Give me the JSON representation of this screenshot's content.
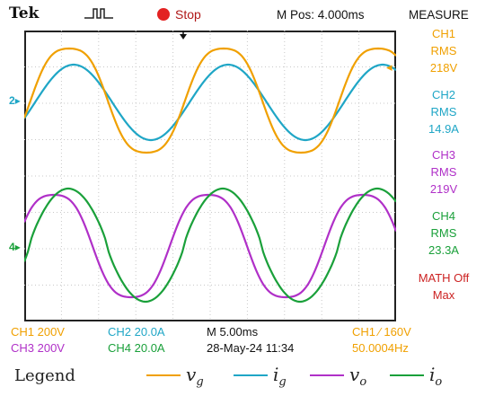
{
  "header": {
    "brand": "Tek",
    "trigger_icon": "pulse-icon",
    "run_state": "Stop",
    "run_state_icon": "stop-icon",
    "m_pos": "M Pos: 4.000ms",
    "measure_title": "MEASURE"
  },
  "markers": {
    "ch2_level": "2",
    "ch4_level": "4"
  },
  "measurements": [
    {
      "channel": "CH1",
      "type": "RMS",
      "value": "218V",
      "color": "#f0a000"
    },
    {
      "channel": "CH2",
      "type": "RMS",
      "value": "14.9A",
      "color": "#1fa6c6"
    },
    {
      "channel": "CH3",
      "type": "RMS",
      "value": "219V",
      "color": "#b030c8"
    },
    {
      "channel": "CH4",
      "type": "RMS",
      "value": "23.3A",
      "color": "#1aa03a"
    },
    {
      "channel": "MATH Off",
      "type": "Max",
      "value": "",
      "color": "#cc2222"
    }
  ],
  "bottom": {
    "ch1_scale": "CH1  200V",
    "ch2_scale": "CH2  20.0A",
    "ch3_scale": "CH3  200V",
    "ch4_scale": "CH4  20.0A",
    "timebase": "M 5.00ms",
    "date": "28-May-24 11:34",
    "trigger": "CH1 ∕ 160V",
    "frequency": "50.0004Hz"
  },
  "legend": {
    "title": "Legend",
    "items": [
      {
        "symbol": "v",
        "sub": "g",
        "color": "#f0a000"
      },
      {
        "symbol": "i",
        "sub": "g",
        "color": "#1fa6c6"
      },
      {
        "symbol": "v",
        "sub": "o",
        "color": "#b030c8"
      },
      {
        "symbol": "i",
        "sub": "o",
        "color": "#1aa03a"
      }
    ]
  },
  "colors": {
    "ch1": "#f0a000",
    "ch2": "#1fa6c6",
    "ch3": "#b030c8",
    "ch4": "#1aa03a",
    "math": "#cc2222",
    "grid": "#c8c8c8"
  }
}
